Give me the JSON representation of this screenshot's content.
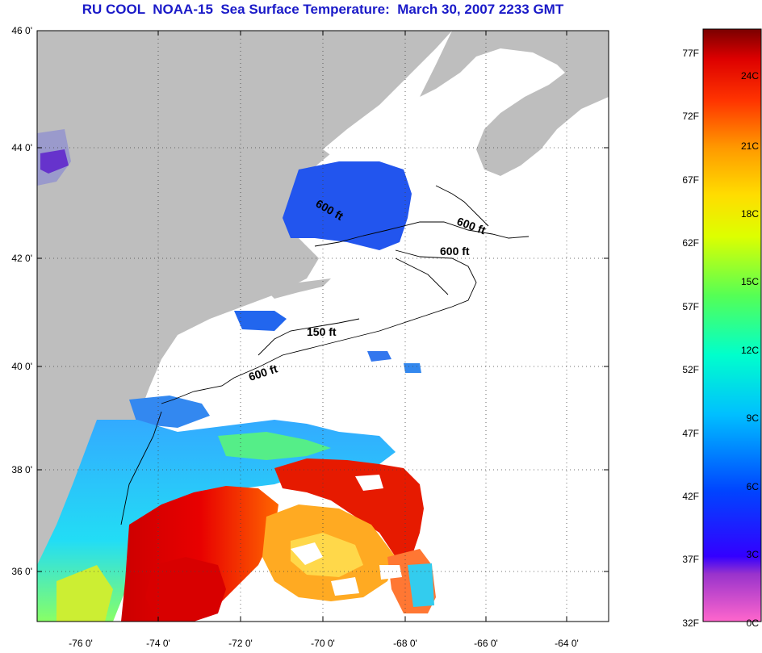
{
  "title": "RU COOL  NOAA-15  Sea Surface Temperature:  March 30, 2007 2233 GMT",
  "latitude_labels": [
    "46 0'",
    "44 0'",
    "42 0'",
    "40 0'",
    "38 0'",
    "36 0'"
  ],
  "longitude_labels": [
    "-76 0'",
    "-74 0'",
    "-72 0'",
    "-70 0'",
    "-68 0'",
    "-66 0'",
    "-64 0'"
  ],
  "contour_labels": [
    "600 ft",
    "600 ft",
    "600 ft",
    "150 ft",
    "600 ft"
  ],
  "colorbar": {
    "fahrenheit_labels": [
      "77F",
      "72F",
      "67F",
      "62F",
      "57F",
      "52F",
      "47F",
      "42F",
      "37F",
      "32F"
    ],
    "celsius_labels": [
      "24C",
      "21C",
      "18C",
      "15C",
      "12C",
      "9C",
      "6C",
      "3C",
      "0C"
    ]
  },
  "colors": {
    "title": "#1a1ac8",
    "land": "#bebebe",
    "ocean_no_data": "#ffffff"
  }
}
